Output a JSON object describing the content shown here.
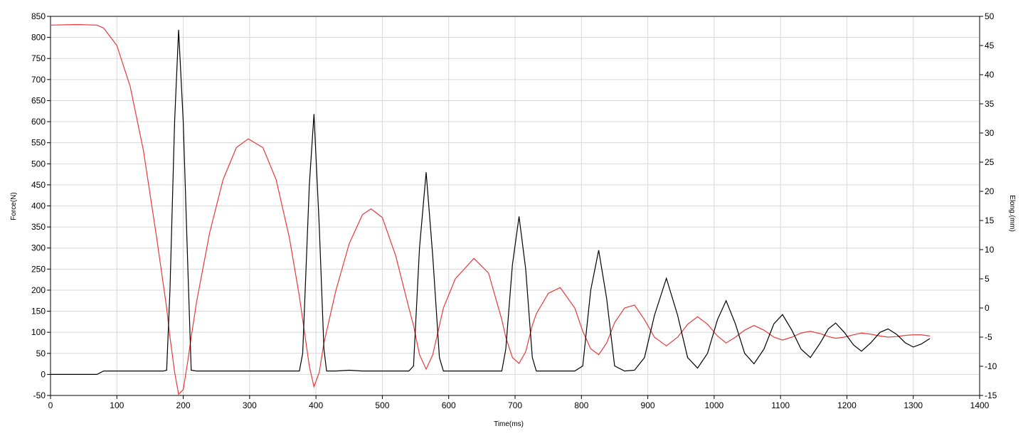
{
  "chart_data": {
    "type": "line",
    "xlabel": "Time(ms)",
    "ylabel": "Force(N)",
    "y2label": "Elong.(mm)",
    "xlim": [
      0,
      1400
    ],
    "xticks": [
      0,
      100,
      200,
      300,
      400,
      500,
      600,
      700,
      800,
      900,
      1000,
      1100,
      1200,
      1300,
      1400
    ],
    "ylim": [
      -50,
      850
    ],
    "yticks": [
      -50,
      0,
      50,
      100,
      150,
      200,
      250,
      300,
      350,
      400,
      450,
      500,
      550,
      600,
      650,
      700,
      750,
      800,
      850
    ],
    "y2lim": [
      -15,
      50
    ],
    "y2ticks": [
      -15,
      -10,
      -5,
      0,
      5,
      10,
      15,
      20,
      25,
      30,
      35,
      40,
      45,
      50
    ],
    "grid": true,
    "x": [
      0,
      40,
      70,
      80,
      100,
      120,
      140,
      160,
      170,
      175,
      180,
      187,
      193,
      200,
      207,
      212,
      220,
      240,
      260,
      280,
      298,
      320,
      340,
      360,
      375,
      380,
      390,
      397,
      405,
      412,
      416,
      430,
      450,
      470,
      483,
      500,
      520,
      540,
      547,
      556,
      566,
      576,
      586,
      592,
      610,
      638,
      660,
      680,
      686,
      696,
      706,
      716,
      726,
      732,
      750,
      768,
      790,
      802,
      814,
      826,
      838,
      850,
      865,
      880,
      895,
      910,
      928,
      945,
      960,
      975,
      990,
      1005,
      1018,
      1032,
      1046,
      1060,
      1075,
      1090,
      1103,
      1117,
      1131,
      1145,
      1160,
      1172,
      1183,
      1196,
      1210,
      1222,
      1236,
      1250,
      1262,
      1275,
      1288,
      1300,
      1312,
      1325
    ],
    "series": [
      {
        "color": "#e8393a",
        "axis": "y2",
        "values": [
          48.5,
          48.6,
          48.5,
          48,
          45,
          38,
          27,
          12,
          4,
          0,
          -5,
          -11,
          -14.8,
          -14,
          -9,
          -5,
          1,
          13,
          22,
          27.5,
          29,
          27.5,
          22,
          12,
          2,
          -2,
          -10,
          -13.5,
          -11,
          -6,
          -4,
          3,
          11,
          16,
          17,
          15.5,
          9,
          0,
          -3,
          -8,
          -10.5,
          -8,
          -3,
          0,
          5,
          8.5,
          6,
          -2,
          -5,
          -8.5,
          -9.5,
          -7.5,
          -3,
          -1,
          2.5,
          3.5,
          0,
          -4,
          -7,
          -8,
          -6,
          -2.5,
          0,
          0.5,
          -2,
          -5,
          -6.5,
          -5,
          -2.8,
          -1.5,
          -2.8,
          -4.8,
          -6,
          -5,
          -3.8,
          -3,
          -3.8,
          -5,
          -5.5,
          -5,
          -4.3,
          -4,
          -4.4,
          -4.9,
          -5.2,
          -5,
          -4.6,
          -4.3,
          -4.5,
          -4.8,
          -5,
          -4.9,
          -4.7,
          -4.6,
          -4.6,
          -4.8
        ]
      },
      {
        "color": "#000000",
        "axis": "y",
        "values": [
          0,
          0,
          0,
          8,
          8,
          8,
          8,
          8,
          8,
          10,
          200,
          600,
          818,
          600,
          250,
          10,
          8,
          8,
          8,
          8,
          8,
          8,
          8,
          8,
          8,
          50,
          450,
          618,
          350,
          60,
          8,
          8,
          10,
          8,
          8,
          8,
          8,
          8,
          20,
          300,
          480,
          280,
          40,
          8,
          8,
          8,
          8,
          8,
          60,
          260,
          375,
          250,
          40,
          8,
          8,
          8,
          8,
          20,
          200,
          295,
          180,
          20,
          8,
          10,
          40,
          140,
          228,
          140,
          40,
          15,
          50,
          130,
          175,
          120,
          50,
          25,
          60,
          120,
          142,
          105,
          60,
          40,
          75,
          108,
          122,
          100,
          70,
          55,
          75,
          100,
          108,
          95,
          75,
          65,
          72,
          85
        ]
      }
    ]
  }
}
